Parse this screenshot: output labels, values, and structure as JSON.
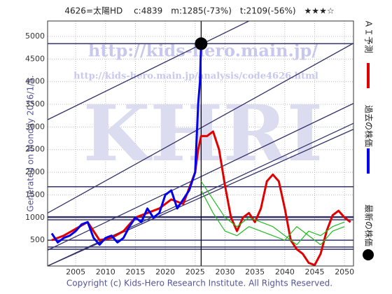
{
  "chart_data": {
    "type": "line",
    "title": "4626=太陽HD　 c:4839　m:1285(-73%)　t:2109(-56%)　★★★☆",
    "y_label": "Generated on Monday 2026/1/5.",
    "footer": "Copyright (c) Kids-Hero Research Institute. All Rights Reserved.",
    "watermarks": [
      "http://kids-hero.main.jp/",
      "http://kids-hero.main.jp/analysis/code4626.html",
      "KHRI"
    ],
    "xlim": [
      2000.3,
      2051.5
    ],
    "ylim": [
      -70,
      5340
    ],
    "xticks": [
      2005,
      2010,
      2015,
      2020,
      2025,
      2030,
      2035,
      2040,
      2045,
      2050
    ],
    "yticks": [
      500,
      1000,
      1500,
      2000,
      2500,
      3000,
      3500,
      4000,
      4500,
      5000
    ],
    "grid": true,
    "hlines": [
      4839,
      1680,
      1010,
      950,
      500,
      350,
      300
    ],
    "vline": 2026,
    "trend_lines": [
      {
        "x": [
          2000.3,
          2034
        ],
        "values": [
          3160,
          5340
        ]
      },
      {
        "x": [
          2000.3,
          2051.5
        ],
        "values": [
          1100,
          4850
        ]
      },
      {
        "x": [
          2000.3,
          2051.5
        ],
        "values": [
          280,
          3520
        ]
      },
      {
        "x": [
          2000.3,
          2051.5
        ],
        "values": [
          -70,
          3080
        ]
      },
      {
        "x": [
          2000.3,
          2051.5
        ],
        "values": [
          -70,
          2950
        ]
      }
    ],
    "series": [
      {
        "name": "ＡＩ予測",
        "color": "#e00000",
        "kind": "line",
        "width": 3,
        "x": [
          2001,
          2003,
          2005,
          2007,
          2009,
          2011,
          2013,
          2015,
          2017,
          2019,
          2021,
          2023,
          2025,
          2025.5,
          2026,
          2027,
          2028,
          2029,
          2030,
          2031,
          2032,
          2033,
          2034,
          2035,
          2036,
          2037,
          2038,
          2039,
          2040,
          2041,
          2042,
          2043,
          2044,
          2045,
          2046,
          2047,
          2048,
          2049,
          2050,
          2051
        ],
        "values": [
          500,
          600,
          750,
          900,
          500,
          550,
          700,
          1000,
          1100,
          1200,
          1400,
          1300,
          2000,
          2500,
          2800,
          2800,
          2900,
          2500,
          1700,
          1000,
          700,
          1000,
          1100,
          900,
          1200,
          1800,
          1950,
          1800,
          1200,
          500,
          300,
          200,
          0,
          -50,
          200,
          700,
          1050,
          1150,
          1000,
          900
        ]
      },
      {
        "color": "#22bb22",
        "kind": "line",
        "width": 1.2,
        "x": [
          2026,
          2028,
          2030,
          2032,
          2034,
          2036,
          2038,
          2040,
          2042,
          2044,
          2046,
          2048,
          2050
        ],
        "values": [
          1800,
          1400,
          1000,
          800,
          1000,
          900,
          800,
          600,
          400,
          700,
          600,
          800,
          900
        ]
      },
      {
        "color": "#22bb22",
        "kind": "line",
        "width": 1.2,
        "x": [
          2026,
          2028,
          2030,
          2032,
          2034,
          2036,
          2038,
          2040,
          2042,
          2044,
          2046,
          2048,
          2050
        ],
        "values": [
          1600,
          1100,
          700,
          600,
          800,
          700,
          600,
          500,
          800,
          600,
          400,
          700,
          800
        ]
      },
      {
        "name": "過去の株価",
        "color": "#0000ee",
        "kind": "line",
        "width": 3,
        "x": [
          2001,
          2002,
          2003,
          2004,
          2005,
          2006,
          2007,
          2008,
          2009,
          2010,
          2011,
          2012,
          2013,
          2014,
          2015,
          2016,
          2017,
          2018,
          2019,
          2020,
          2021,
          2022,
          2023,
          2024,
          2025,
          2025.5,
          2025.8,
          2026
        ],
        "values": [
          650,
          450,
          550,
          600,
          700,
          850,
          900,
          550,
          400,
          550,
          600,
          450,
          550,
          800,
          1000,
          900,
          1200,
          1000,
          1100,
          1500,
          1600,
          1200,
          1400,
          1600,
          2000,
          3500,
          4000,
          4839
        ]
      },
      {
        "name": "最新の株価",
        "color": "#000000",
        "kind": "point",
        "x": [
          2026
        ],
        "values": [
          4839
        ]
      }
    ]
  }
}
